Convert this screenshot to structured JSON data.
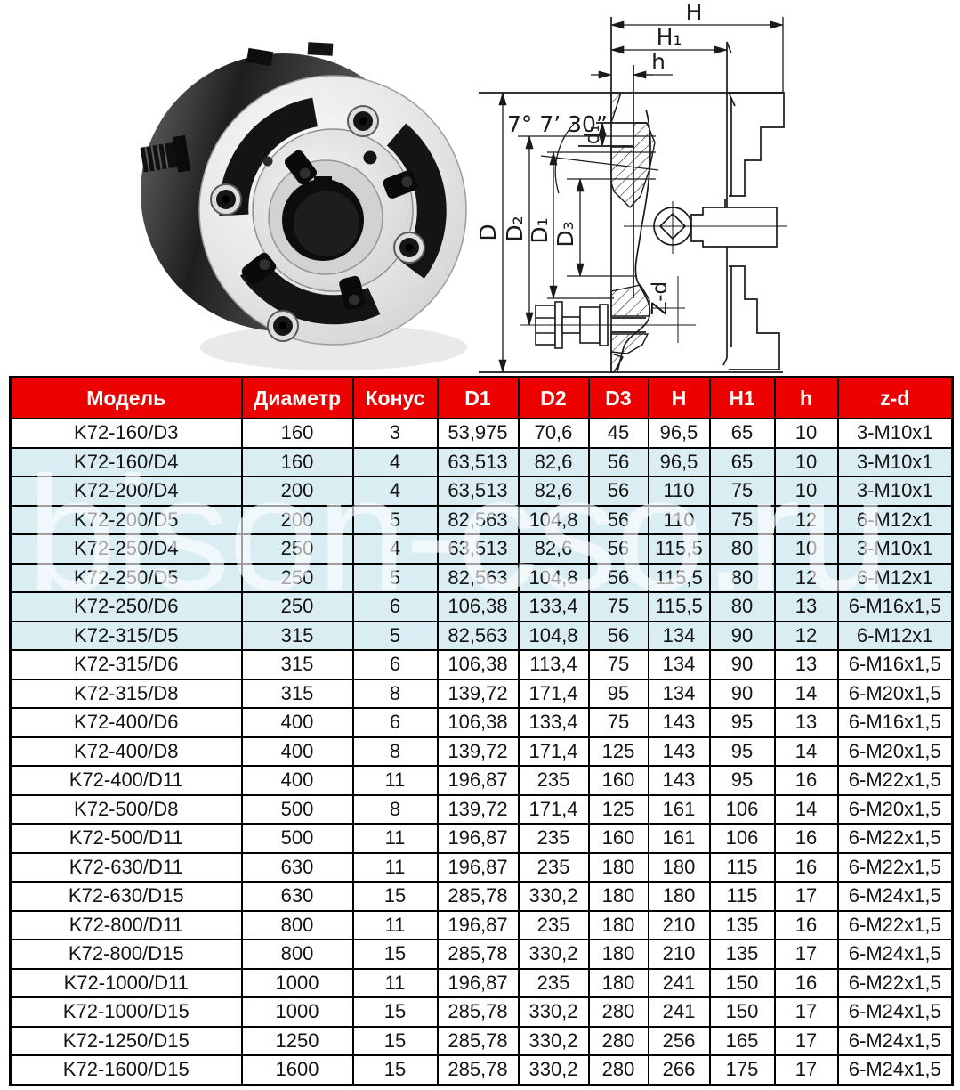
{
  "colors": {
    "header_bg": "#ec0000",
    "header_text": "#ffffff",
    "highlight_row_bg": "#d9edf3",
    "table_border": "#000000",
    "watermark_color": "#ffffff"
  },
  "watermark": {
    "text": "bison-cso.ru"
  },
  "drawing": {
    "dims": {
      "H": "H",
      "H1": "H₁",
      "h": "h",
      "angle": "7° 7’ 30”",
      "d1": "d₁",
      "D": "D",
      "D2": "D₂",
      "D1": "D₁",
      "D3": "D₃",
      "zd": "Z-d"
    }
  },
  "table": {
    "columns": [
      "Модель",
      "Диаметр",
      "Конус",
      "D1",
      "D2",
      "D3",
      "H",
      "H1",
      "h",
      "z-d"
    ],
    "highlight_rows": [
      1,
      2,
      3,
      4,
      5,
      6,
      7
    ],
    "rows": [
      [
        "K72-160/D3",
        "160",
        "3",
        "53,975",
        "70,6",
        "45",
        "96,5",
        "65",
        "10",
        "3-M10x1"
      ],
      [
        "K72-160/D4",
        "160",
        "4",
        "63,513",
        "82,6",
        "56",
        "96,5",
        "65",
        "10",
        "3-M10x1"
      ],
      [
        "K72-200/D4",
        "200",
        "4",
        "63,513",
        "82,6",
        "56",
        "110",
        "75",
        "10",
        "3-M10x1"
      ],
      [
        "K72-200/D5",
        "200",
        "5",
        "82,563",
        "104,8",
        "56",
        "110",
        "75",
        "12",
        "6-M12x1"
      ],
      [
        "K72-250/D4",
        "250",
        "4",
        "63,513",
        "82,6",
        "56",
        "115,5",
        "80",
        "10",
        "3-M10x1"
      ],
      [
        "K72-250/D5",
        "250",
        "5",
        "82,563",
        "104,8",
        "56",
        "115,5",
        "80",
        "12",
        "6-M12x1"
      ],
      [
        "K72-250/D6",
        "250",
        "6",
        "106,38",
        "133,4",
        "75",
        "115,5",
        "80",
        "13",
        "6-M16x1,5"
      ],
      [
        "K72-315/D5",
        "315",
        "5",
        "82,563",
        "104,8",
        "56",
        "134",
        "90",
        "12",
        "6-M12x1"
      ],
      [
        "K72-315/D6",
        "315",
        "6",
        "106,38",
        "113,4",
        "75",
        "134",
        "90",
        "13",
        "6-M16x1,5"
      ],
      [
        "K72-315/D8",
        "315",
        "8",
        "139,72",
        "171,4",
        "95",
        "134",
        "90",
        "14",
        "6-M20x1,5"
      ],
      [
        "K72-400/D6",
        "400",
        "6",
        "106,38",
        "133,4",
        "75",
        "143",
        "95",
        "13",
        "6-M16x1,5"
      ],
      [
        "K72-400/D8",
        "400",
        "8",
        "139,72",
        "171,4",
        "125",
        "143",
        "95",
        "14",
        "6-M20x1,5"
      ],
      [
        "K72-400/D11",
        "400",
        "11",
        "196,87",
        "235",
        "160",
        "143",
        "95",
        "16",
        "6-M22x1,5"
      ],
      [
        "K72-500/D8",
        "500",
        "8",
        "139,72",
        "171,4",
        "125",
        "161",
        "106",
        "14",
        "6-M20x1,5"
      ],
      [
        "K72-500/D11",
        "500",
        "11",
        "196,87",
        "235",
        "160",
        "161",
        "106",
        "16",
        "6-M22x1,5"
      ],
      [
        "K72-630/D11",
        "630",
        "11",
        "196,87",
        "235",
        "180",
        "180",
        "115",
        "16",
        "6-M22x1,5"
      ],
      [
        "K72-630/D15",
        "630",
        "15",
        "285,78",
        "330,2",
        "180",
        "180",
        "115",
        "17",
        "6-M24x1,5"
      ],
      [
        "K72-800/D11",
        "800",
        "11",
        "196,87",
        "235",
        "180",
        "210",
        "135",
        "16",
        "6-M22x1,5"
      ],
      [
        "K72-800/D15",
        "800",
        "15",
        "285,78",
        "330,2",
        "180",
        "210",
        "135",
        "17",
        "6-M24x1,5"
      ],
      [
        "K72-1000/D11",
        "1000",
        "11",
        "196,87",
        "235",
        "180",
        "241",
        "150",
        "16",
        "6-M22x1,5"
      ],
      [
        "K72-1000/D15",
        "1000",
        "15",
        "285,78",
        "330,2",
        "280",
        "241",
        "150",
        "17",
        "6-M24x1,5"
      ],
      [
        "K72-1250/D15",
        "1250",
        "15",
        "285,78",
        "330,2",
        "280",
        "256",
        "165",
        "17",
        "6-M24x1,5"
      ],
      [
        "K72-1600/D15",
        "1600",
        "15",
        "285,78",
        "330,2",
        "280",
        "266",
        "175",
        "17",
        "6-M24x1,5"
      ]
    ]
  }
}
